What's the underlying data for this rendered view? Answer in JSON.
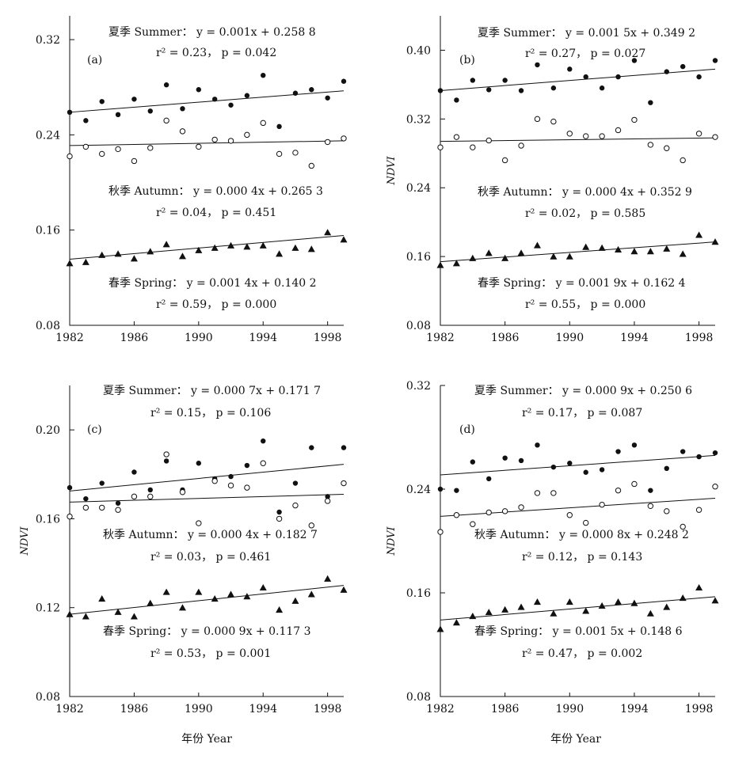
{
  "colors": {
    "ink": "#111111",
    "background": "#ffffff"
  },
  "x_axis_label": "年份 Year",
  "chart_data": [
    {
      "type": "scatter",
      "panel": "(a)",
      "ylabel": "",
      "xlabel": "",
      "xlim": [
        1982,
        1999
      ],
      "ylim": [
        0.08,
        0.34
      ],
      "xticks": [
        "1982",
        "1986",
        "1990",
        "1994",
        "1998"
      ],
      "yticks": [
        "0.08",
        "0.16",
        "0.24",
        "0.32"
      ],
      "x": [
        1982,
        1983,
        1984,
        1985,
        1986,
        1987,
        1988,
        1989,
        1990,
        1991,
        1992,
        1993,
        1994,
        1995,
        1996,
        1997,
        1998,
        1999
      ],
      "series": [
        {
          "name": "夏季 Summer",
          "marker": "filled-circle",
          "values": [
            0.259,
            0.252,
            0.268,
            0.257,
            0.27,
            0.26,
            0.282,
            0.262,
            0.278,
            0.27,
            0.265,
            0.273,
            0.29,
            0.247,
            0.275,
            0.278,
            0.271,
            0.285
          ],
          "equation": "夏季 Summer： y = 0.001x + 0.258 8",
          "stats": "r² = 0.23， p = 0.042"
        },
        {
          "name": "秋季 Autumn",
          "marker": "open-circle",
          "values": [
            0.222,
            0.23,
            0.224,
            0.228,
            0.218,
            0.229,
            0.252,
            0.243,
            0.23,
            0.236,
            0.235,
            0.24,
            0.25,
            0.224,
            0.225,
            0.214,
            0.234,
            0.237
          ],
          "equation": "秋季 Autumn： y = 0.000 4x + 0.265 3",
          "stats": "r² = 0.04， p = 0.451"
        },
        {
          "name": "春季 Spring",
          "marker": "filled-triangle",
          "values": [
            0.132,
            0.133,
            0.139,
            0.14,
            0.136,
            0.142,
            0.148,
            0.138,
            0.143,
            0.145,
            0.147,
            0.146,
            0.147,
            0.14,
            0.145,
            0.144,
            0.158,
            0.152
          ],
          "equation": "春季 Spring： y = 0.001 4x + 0.140 2",
          "stats": "r² = 0.59， p = 0.000"
        }
      ],
      "trend_lines": [
        [
          0.259,
          0.277
        ],
        [
          0.231,
          0.235
        ],
        [
          0.1355,
          0.1555
        ]
      ]
    },
    {
      "type": "scatter",
      "panel": "(b)",
      "ylabel": "NDVI",
      "xlabel": "",
      "xlim": [
        1982,
        1999
      ],
      "ylim": [
        0.08,
        0.44
      ],
      "xticks": [
        "1982",
        "1986",
        "1990",
        "1994",
        "1998"
      ],
      "yticks": [
        "0.08",
        "0.16",
        "0.24",
        "0.32",
        "0.40"
      ],
      "x": [
        1982,
        1983,
        1984,
        1985,
        1986,
        1987,
        1988,
        1989,
        1990,
        1991,
        1992,
        1993,
        1994,
        1995,
        1996,
        1997,
        1998,
        1999
      ],
      "series": [
        {
          "name": "夏季 Summer",
          "marker": "filled-circle",
          "values": [
            0.353,
            0.342,
            0.365,
            0.354,
            0.365,
            0.353,
            0.383,
            0.356,
            0.378,
            0.369,
            0.356,
            0.369,
            0.388,
            0.339,
            0.375,
            0.381,
            0.369,
            0.388
          ],
          "equation": "夏季 Summer： y = 0.001 5x + 0.349 2",
          "stats": "r² = 0.27， p = 0.027"
        },
        {
          "name": "秋季 Autumn",
          "marker": "open-circle",
          "values": [
            0.287,
            0.299,
            0.287,
            0.295,
            0.272,
            0.289,
            0.32,
            0.317,
            0.303,
            0.3,
            0.3,
            0.307,
            0.319,
            0.29,
            0.286,
            0.272,
            0.303,
            0.299
          ],
          "equation": "秋季 Autumn： y = 0.000 4x + 0.352 9",
          "stats": "r² = 0.02， p = 0.585"
        },
        {
          "name": "春季 Spring",
          "marker": "filled-triangle",
          "values": [
            0.15,
            0.152,
            0.158,
            0.164,
            0.158,
            0.164,
            0.173,
            0.16,
            0.16,
            0.171,
            0.17,
            0.168,
            0.166,
            0.166,
            0.169,
            0.163,
            0.185,
            0.177
          ],
          "equation": "春季 Spring： y = 0.001 9x + 0.162 4",
          "stats": "r² = 0.55， p = 0.000"
        }
      ],
      "trend_lines": [
        [
          0.353,
          0.378
        ],
        [
          0.294,
          0.298
        ],
        [
          0.154,
          0.177
        ]
      ]
    },
    {
      "type": "scatter",
      "panel": "(c)",
      "ylabel": "NDVI",
      "xlabel": "",
      "xlim": [
        1982,
        1999
      ],
      "ylim": [
        0.08,
        0.22
      ],
      "xticks": [
        "1982",
        "1986",
        "1990",
        "1994",
        "1998"
      ],
      "yticks": [
        "0.08",
        "0.12",
        "0.16",
        "0.20"
      ],
      "x": [
        1982,
        1983,
        1984,
        1985,
        1986,
        1987,
        1988,
        1989,
        1990,
        1991,
        1992,
        1993,
        1994,
        1995,
        1996,
        1997,
        1998,
        1999
      ],
      "series": [
        {
          "name": "夏季 Summer",
          "marker": "filled-circle",
          "values": [
            0.174,
            0.169,
            0.176,
            0.167,
            0.181,
            0.173,
            0.186,
            0.173,
            0.185,
            0.178,
            0.179,
            0.184,
            0.195,
            0.163,
            0.176,
            0.192,
            0.17,
            0.192
          ],
          "equation": "夏季 Summer： y = 0.000 7x + 0.171 7",
          "stats": "r² = 0.15， p = 0.106"
        },
        {
          "name": "秋季 Autumn",
          "marker": "open-circle",
          "values": [
            0.161,
            0.165,
            0.165,
            0.164,
            0.17,
            0.17,
            0.189,
            0.172,
            0.158,
            0.177,
            0.175,
            0.174,
            0.185,
            0.16,
            0.166,
            0.157,
            0.168,
            0.176
          ],
          "equation": "秋季 Autumn： y = 0.000 4x + 0.182 7",
          "stats": "r² = 0.03， p = 0.461"
        },
        {
          "name": "春季 Spring",
          "marker": "filled-triangle",
          "values": [
            0.117,
            0.116,
            0.124,
            0.118,
            0.116,
            0.122,
            0.127,
            0.12,
            0.127,
            0.124,
            0.126,
            0.125,
            0.129,
            0.119,
            0.123,
            0.126,
            0.133,
            0.128
          ],
          "equation": "春季 Spring： y = 0.000 9x + 0.117 3",
          "stats": "r² = 0.53， p = 0.001"
        }
      ],
      "trend_lines": [
        [
          0.1725,
          0.1845
        ],
        [
          0.1675,
          0.171
        ],
        [
          0.117,
          0.13
        ]
      ]
    },
    {
      "type": "scatter",
      "panel": "(d)",
      "ylabel": "NDVI",
      "xlabel": "",
      "xlim": [
        1982,
        1999
      ],
      "ylim": [
        0.08,
        0.32
      ],
      "xticks": [
        "1982",
        "1986",
        "1990",
        "1994",
        "1998"
      ],
      "yticks": [
        "0.08",
        "0.16",
        "0.24",
        "0.32"
      ],
      "x": [
        1982,
        1983,
        1984,
        1985,
        1986,
        1987,
        1988,
        1989,
        1990,
        1991,
        1992,
        1993,
        1994,
        1995,
        1996,
        1997,
        1998,
        1999
      ],
      "series": [
        {
          "name": "夏季 Summer",
          "marker": "filled-circle",
          "values": [
            0.24,
            0.239,
            0.261,
            0.248,
            0.264,
            0.262,
            0.274,
            0.257,
            0.26,
            0.253,
            0.255,
            0.269,
            0.274,
            0.239,
            0.256,
            0.269,
            0.265,
            0.268
          ],
          "equation": "夏季 Summer： y = 0.000 9x + 0.250 6",
          "stats": "r² = 0.17， p = 0.087"
        },
        {
          "name": "秋季 Autumn",
          "marker": "open-circle",
          "values": [
            0.207,
            0.22,
            0.213,
            0.222,
            0.223,
            0.226,
            0.237,
            0.237,
            0.22,
            0.214,
            0.228,
            0.239,
            0.244,
            0.227,
            0.223,
            0.211,
            0.224,
            0.242
          ],
          "equation": "秋季 Autumn： y = 0.000 8x + 0.248 2",
          "stats": "r² = 0.12， p = 0.143"
        },
        {
          "name": "春季 Spring",
          "marker": "filled-triangle",
          "values": [
            0.132,
            0.137,
            0.142,
            0.145,
            0.147,
            0.149,
            0.153,
            0.144,
            0.153,
            0.146,
            0.15,
            0.153,
            0.152,
            0.144,
            0.149,
            0.156,
            0.164,
            0.154
          ],
          "equation": "春季 Spring： y = 0.001 5x + 0.148 6",
          "stats": "r² = 0.47， p = 0.002"
        }
      ],
      "trend_lines": [
        [
          0.251,
          0.266
        ],
        [
          0.219,
          0.233
        ],
        [
          0.139,
          0.157
        ]
      ]
    }
  ]
}
